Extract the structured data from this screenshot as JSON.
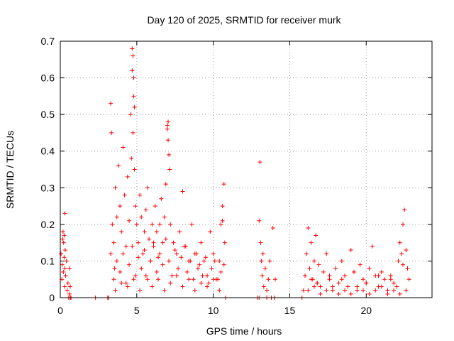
{
  "chart_data": {
    "type": "scatter",
    "title": "Day 120 of 2025, SRMTID for receiver murk",
    "xlabel": "GPS time / hours",
    "ylabel": "SRMTID / TECUs",
    "xlim": [
      0,
      24.3
    ],
    "ylim": [
      0,
      0.7
    ],
    "xticks": [
      0,
      5,
      10,
      15,
      20
    ],
    "xtick_labels": [
      "0",
      "5",
      "10",
      "15",
      "20"
    ],
    "yticks": [
      0,
      0.1,
      0.2,
      0.3,
      0.4,
      0.5,
      0.6,
      0.7
    ],
    "ytick_labels": [
      "0",
      "0.1",
      "0.2",
      "0.3",
      "0.4",
      "0.5",
      "0.6",
      "0.7"
    ],
    "grid": true,
    "marker": "+",
    "color": "#ff0000",
    "series": [
      {
        "name": "SRMTID",
        "x": [
          0.05,
          0.1,
          0.12,
          0.15,
          0.18,
          0.2,
          0.22,
          0.25,
          0.28,
          0.3,
          0.32,
          0.35,
          0.4,
          0.45,
          0.5,
          0.55,
          0.6,
          0.65,
          0.7,
          0.3,
          0.25,
          0.6,
          0.65,
          2.3,
          3.1,
          3.15,
          3.3,
          3.4,
          3.5,
          3.55,
          3.6,
          3.7,
          3.8,
          3.9,
          4.0,
          4.1,
          4.2,
          4.3,
          4.4,
          4.5,
          4.6,
          4.65,
          4.7,
          4.75,
          4.8,
          4.85,
          4.9,
          5.0,
          5.1,
          5.2,
          5.3,
          5.4,
          5.5,
          5.6,
          5.7,
          5.8,
          5.9,
          6.0,
          6.1,
          6.2,
          6.3,
          6.4,
          6.5,
          6.6,
          6.7,
          6.8,
          6.9,
          7.0,
          7.05,
          7.1,
          7.15,
          7.2,
          7.4,
          7.6,
          7.8,
          8.0,
          8.2,
          8.4,
          8.6,
          8.8,
          9.0,
          9.2,
          9.4,
          9.6,
          9.8,
          10.0,
          10.2,
          10.4,
          10.5,
          10.6,
          10.7,
          10.75,
          10.8,
          3.5,
          3.7,
          3.9,
          4.1,
          4.3,
          4.5,
          4.7,
          4.9,
          5.1,
          5.3,
          5.5,
          5.7,
          5.9,
          6.1,
          6.3,
          6.5,
          6.7,
          6.9,
          7.1,
          7.3,
          7.5,
          7.7,
          7.9,
          8.1,
          8.3,
          8.5,
          8.7,
          8.9,
          9.1,
          9.3,
          9.5,
          9.7,
          9.9,
          10.1,
          10.3,
          10.5,
          10.7,
          3.6,
          4.0,
          4.4,
          4.8,
          5.2,
          5.6,
          6.0,
          6.4,
          6.8,
          7.2,
          7.6,
          8.0,
          8.4,
          8.8,
          9.2,
          9.6,
          10.0,
          10.4,
          12.9,
          13.0,
          13.05,
          13.1,
          13.15,
          13.2,
          13.25,
          13.3,
          13.4,
          13.5,
          13.6,
          13.7,
          13.8,
          13.9,
          14.0,
          14.05,
          13.0,
          13.5,
          14.0,
          15.8,
          15.9,
          16.0,
          16.1,
          16.2,
          16.3,
          16.4,
          16.5,
          16.6,
          16.7,
          16.8,
          16.9,
          17.0,
          17.2,
          17.4,
          17.6,
          17.8,
          18.0,
          18.2,
          18.4,
          18.6,
          18.8,
          19.0,
          19.2,
          19.4,
          19.6,
          19.8,
          20.0,
          20.2,
          20.4,
          20.6,
          20.8,
          21.0,
          21.2,
          21.4,
          21.6,
          21.8,
          22.0,
          22.1,
          22.2,
          22.3,
          22.4,
          22.5,
          22.6,
          22.7,
          22.8,
          16.2,
          16.6,
          17.0,
          17.4,
          17.8,
          18.2,
          18.6,
          19.0,
          19.4,
          19.8,
          20.2,
          20.6,
          21.0,
          21.4,
          21.8,
          22.2,
          22.6,
          16.4,
          16.8,
          17.6,
          18.4,
          19.2,
          20.0,
          20.8,
          21.6,
          22.4,
          4.7,
          4.75,
          4.8,
          4.85,
          3.3,
          3.35,
          7.0,
          7.05,
          10.6
        ],
        "y": [
          0.12,
          0.05,
          0.09,
          0.16,
          0.18,
          0.07,
          0.15,
          0.11,
          0.03,
          0.08,
          0.13,
          0.06,
          0.1,
          0.02,
          0.04,
          0.0,
          0.08,
          0.03,
          0.0,
          0.23,
          0.17,
          0.01,
          0.0,
          0.0,
          0.0,
          0.0,
          0.12,
          0.2,
          0.15,
          0.08,
          0.3,
          0.22,
          0.36,
          0.25,
          0.18,
          0.41,
          0.28,
          0.14,
          0.33,
          0.21,
          0.5,
          0.38,
          0.62,
          0.45,
          0.55,
          0.35,
          0.25,
          0.2,
          0.15,
          0.28,
          0.22,
          0.12,
          0.18,
          0.24,
          0.3,
          0.16,
          0.1,
          0.2,
          0.14,
          0.25,
          0.18,
          0.11,
          0.2,
          0.27,
          0.15,
          0.22,
          0.31,
          0.46,
          0.48,
          0.39,
          0.35,
          0.2,
          0.15,
          0.12,
          0.18,
          0.29,
          0.14,
          0.1,
          0.2,
          0.12,
          0.08,
          0.15,
          0.1,
          0.06,
          0.18,
          0.12,
          0.05,
          0.1,
          0.2,
          0.25,
          0.31,
          0.15,
          0.0,
          0.05,
          0.1,
          0.07,
          0.12,
          0.04,
          0.09,
          0.14,
          0.06,
          0.11,
          0.08,
          0.13,
          0.05,
          0.1,
          0.15,
          0.07,
          0.12,
          0.09,
          0.16,
          0.1,
          0.06,
          0.13,
          0.08,
          0.11,
          0.14,
          0.07,
          0.1,
          0.05,
          0.12,
          0.09,
          0.06,
          0.11,
          0.04,
          0.08,
          0.1,
          0.05,
          0.07,
          0.09,
          0.02,
          0.04,
          0.03,
          0.05,
          0.02,
          0.06,
          0.03,
          0.05,
          0.02,
          0.04,
          0.06,
          0.03,
          0.05,
          0.02,
          0.04,
          0.03,
          0.05,
          0.02,
          0.0,
          0.21,
          0.37,
          0.15,
          0.1,
          0.06,
          0.12,
          0.03,
          0.08,
          0.02,
          0.05,
          0.1,
          0.0,
          0.19,
          0.0,
          0.05,
          0.0,
          0.0,
          0.0,
          0.0,
          0.02,
          0.06,
          0.12,
          0.19,
          0.08,
          0.15,
          0.05,
          0.1,
          0.17,
          0.04,
          0.09,
          0.03,
          0.07,
          0.12,
          0.05,
          0.02,
          0.08,
          0.04,
          0.1,
          0.06,
          0.03,
          0.13,
          0.07,
          0.02,
          0.09,
          0.05,
          0.04,
          0.08,
          0.14,
          0.06,
          0.03,
          0.07,
          0.05,
          0.02,
          0.06,
          0.04,
          0.03,
          0.1,
          0.15,
          0.12,
          0.2,
          0.24,
          0.13,
          0.08,
          0.05,
          0.02,
          0.03,
          0.01,
          0.02,
          0.03,
          0.01,
          0.02,
          0.01,
          0.03,
          0.02,
          0.01,
          0.02,
          0.03,
          0.01,
          0.02,
          0.01,
          0.02,
          0.05,
          0.04,
          0.06,
          0.05,
          0.07,
          0.04,
          0.06,
          0.05,
          0.09,
          0.68,
          0.66,
          0.6,
          0.52,
          0.53,
          0.45,
          0.47,
          0.43,
          0.21
        ]
      }
    ]
  }
}
